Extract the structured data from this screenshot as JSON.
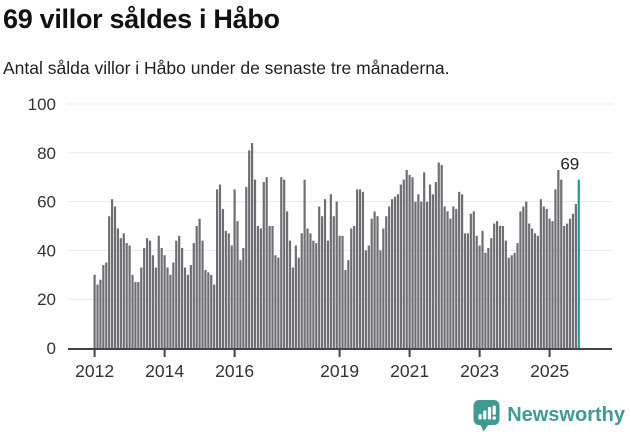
{
  "header": {
    "title": "69 villor såldes i Håbo",
    "subtitle": "Antal sålda villor i Håbo under de senaste tre månaderna."
  },
  "chart_data": {
    "type": "bar",
    "title": "69 villor såldes i Håbo",
    "subtitle": "Antal sålda villor i Håbo under de senaste tre månaderna.",
    "xlabel": "",
    "ylabel": "",
    "ylim": [
      0,
      100
    ],
    "y_ticks": [
      0,
      20,
      40,
      60,
      80,
      100
    ],
    "grid": true,
    "x_start_year": 2012,
    "x_frequency": "monthly",
    "x_tick_years": [
      2012,
      2014,
      2016,
      2019,
      2021,
      2023,
      2025
    ],
    "bar_color": "#6e6e73",
    "gridline_color": "#e8e8e8",
    "axis_line_color": "#444444",
    "axis_label_color": "#333333",
    "highlight": {
      "index": 166,
      "value": 69,
      "label": "69",
      "color": "#189e9a"
    },
    "values": [
      30,
      26,
      28,
      34,
      35,
      54,
      61,
      58,
      49,
      45,
      47,
      43,
      42,
      30,
      27,
      27,
      33,
      41,
      45,
      44,
      38,
      33,
      46,
      41,
      38,
      33,
      30,
      35,
      44,
      46,
      41,
      33,
      30,
      34,
      43,
      50,
      53,
      44,
      32,
      31,
      30,
      26,
      65,
      67,
      57,
      48,
      47,
      42,
      65,
      52,
      36,
      41,
      66,
      81,
      84,
      69,
      50,
      49,
      68,
      70,
      50,
      50,
      38,
      37,
      70,
      69,
      56,
      44,
      33,
      42,
      37,
      47,
      69,
      49,
      47,
      44,
      43,
      58,
      54,
      61,
      44,
      63,
      54,
      60,
      46,
      46,
      32,
      36,
      49,
      50,
      65,
      65,
      64,
      40,
      42,
      53,
      56,
      54,
      40,
      49,
      54,
      58,
      61,
      62,
      63,
      67,
      69,
      73,
      71,
      70,
      60,
      63,
      60,
      72,
      60,
      67,
      63,
      68,
      76,
      75,
      58,
      56,
      53,
      58,
      57,
      64,
      63,
      47,
      47,
      55,
      56,
      46,
      42,
      48,
      39,
      41,
      45,
      51,
      52,
      50,
      50,
      44,
      37,
      38,
      39,
      43,
      56,
      58,
      60,
      51,
      49,
      47,
      46,
      61,
      58,
      57,
      53,
      52,
      65,
      73,
      69,
      50,
      51,
      53,
      55,
      59,
      69
    ]
  },
  "footer": {
    "brand": "Newsworthy",
    "logo_icon": "newsworthy-speech-bubble-chart-icon",
    "brand_color": "#3e9b94"
  }
}
